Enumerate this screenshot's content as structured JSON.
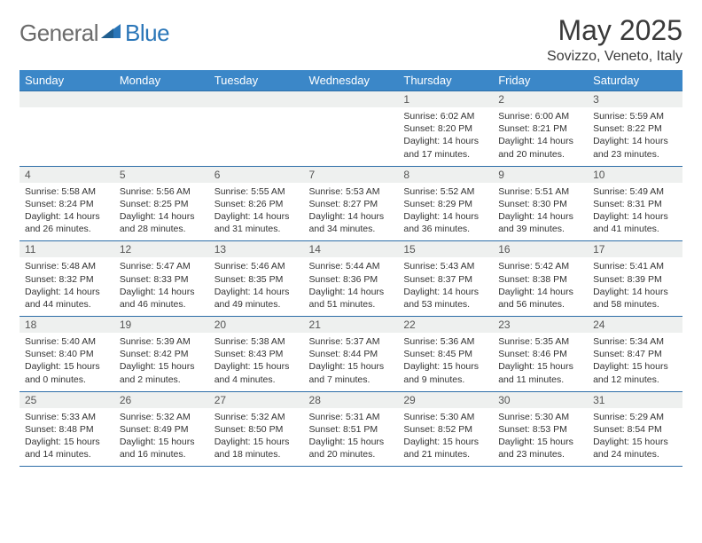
{
  "brand": {
    "general": "General",
    "blue": "Blue"
  },
  "title": "May 2025",
  "location": "Sovizzo, Veneto, Italy",
  "colors": {
    "header_bg": "#3b87c8",
    "header_text": "#ffffff",
    "grid_line": "#2d6ea8",
    "daynum_bg": "#eef0ef",
    "text": "#333333",
    "logo_gray": "#6b6b6b",
    "logo_blue": "#2a76b8"
  },
  "weekdays": [
    "Sunday",
    "Monday",
    "Tuesday",
    "Wednesday",
    "Thursday",
    "Friday",
    "Saturday"
  ],
  "weeks": [
    [
      {
        "n": "",
        "sr": "",
        "ss": "",
        "dl": ""
      },
      {
        "n": "",
        "sr": "",
        "ss": "",
        "dl": ""
      },
      {
        "n": "",
        "sr": "",
        "ss": "",
        "dl": ""
      },
      {
        "n": "",
        "sr": "",
        "ss": "",
        "dl": ""
      },
      {
        "n": "1",
        "sr": "Sunrise: 6:02 AM",
        "ss": "Sunset: 8:20 PM",
        "dl": "Daylight: 14 hours and 17 minutes."
      },
      {
        "n": "2",
        "sr": "Sunrise: 6:00 AM",
        "ss": "Sunset: 8:21 PM",
        "dl": "Daylight: 14 hours and 20 minutes."
      },
      {
        "n": "3",
        "sr": "Sunrise: 5:59 AM",
        "ss": "Sunset: 8:22 PM",
        "dl": "Daylight: 14 hours and 23 minutes."
      }
    ],
    [
      {
        "n": "4",
        "sr": "Sunrise: 5:58 AM",
        "ss": "Sunset: 8:24 PM",
        "dl": "Daylight: 14 hours and 26 minutes."
      },
      {
        "n": "5",
        "sr": "Sunrise: 5:56 AM",
        "ss": "Sunset: 8:25 PM",
        "dl": "Daylight: 14 hours and 28 minutes."
      },
      {
        "n": "6",
        "sr": "Sunrise: 5:55 AM",
        "ss": "Sunset: 8:26 PM",
        "dl": "Daylight: 14 hours and 31 minutes."
      },
      {
        "n": "7",
        "sr": "Sunrise: 5:53 AM",
        "ss": "Sunset: 8:27 PM",
        "dl": "Daylight: 14 hours and 34 minutes."
      },
      {
        "n": "8",
        "sr": "Sunrise: 5:52 AM",
        "ss": "Sunset: 8:29 PM",
        "dl": "Daylight: 14 hours and 36 minutes."
      },
      {
        "n": "9",
        "sr": "Sunrise: 5:51 AM",
        "ss": "Sunset: 8:30 PM",
        "dl": "Daylight: 14 hours and 39 minutes."
      },
      {
        "n": "10",
        "sr": "Sunrise: 5:49 AM",
        "ss": "Sunset: 8:31 PM",
        "dl": "Daylight: 14 hours and 41 minutes."
      }
    ],
    [
      {
        "n": "11",
        "sr": "Sunrise: 5:48 AM",
        "ss": "Sunset: 8:32 PM",
        "dl": "Daylight: 14 hours and 44 minutes."
      },
      {
        "n": "12",
        "sr": "Sunrise: 5:47 AM",
        "ss": "Sunset: 8:33 PM",
        "dl": "Daylight: 14 hours and 46 minutes."
      },
      {
        "n": "13",
        "sr": "Sunrise: 5:46 AM",
        "ss": "Sunset: 8:35 PM",
        "dl": "Daylight: 14 hours and 49 minutes."
      },
      {
        "n": "14",
        "sr": "Sunrise: 5:44 AM",
        "ss": "Sunset: 8:36 PM",
        "dl": "Daylight: 14 hours and 51 minutes."
      },
      {
        "n": "15",
        "sr": "Sunrise: 5:43 AM",
        "ss": "Sunset: 8:37 PM",
        "dl": "Daylight: 14 hours and 53 minutes."
      },
      {
        "n": "16",
        "sr": "Sunrise: 5:42 AM",
        "ss": "Sunset: 8:38 PM",
        "dl": "Daylight: 14 hours and 56 minutes."
      },
      {
        "n": "17",
        "sr": "Sunrise: 5:41 AM",
        "ss": "Sunset: 8:39 PM",
        "dl": "Daylight: 14 hours and 58 minutes."
      }
    ],
    [
      {
        "n": "18",
        "sr": "Sunrise: 5:40 AM",
        "ss": "Sunset: 8:40 PM",
        "dl": "Daylight: 15 hours and 0 minutes."
      },
      {
        "n": "19",
        "sr": "Sunrise: 5:39 AM",
        "ss": "Sunset: 8:42 PM",
        "dl": "Daylight: 15 hours and 2 minutes."
      },
      {
        "n": "20",
        "sr": "Sunrise: 5:38 AM",
        "ss": "Sunset: 8:43 PM",
        "dl": "Daylight: 15 hours and 4 minutes."
      },
      {
        "n": "21",
        "sr": "Sunrise: 5:37 AM",
        "ss": "Sunset: 8:44 PM",
        "dl": "Daylight: 15 hours and 7 minutes."
      },
      {
        "n": "22",
        "sr": "Sunrise: 5:36 AM",
        "ss": "Sunset: 8:45 PM",
        "dl": "Daylight: 15 hours and 9 minutes."
      },
      {
        "n": "23",
        "sr": "Sunrise: 5:35 AM",
        "ss": "Sunset: 8:46 PM",
        "dl": "Daylight: 15 hours and 11 minutes."
      },
      {
        "n": "24",
        "sr": "Sunrise: 5:34 AM",
        "ss": "Sunset: 8:47 PM",
        "dl": "Daylight: 15 hours and 12 minutes."
      }
    ],
    [
      {
        "n": "25",
        "sr": "Sunrise: 5:33 AM",
        "ss": "Sunset: 8:48 PM",
        "dl": "Daylight: 15 hours and 14 minutes."
      },
      {
        "n": "26",
        "sr": "Sunrise: 5:32 AM",
        "ss": "Sunset: 8:49 PM",
        "dl": "Daylight: 15 hours and 16 minutes."
      },
      {
        "n": "27",
        "sr": "Sunrise: 5:32 AM",
        "ss": "Sunset: 8:50 PM",
        "dl": "Daylight: 15 hours and 18 minutes."
      },
      {
        "n": "28",
        "sr": "Sunrise: 5:31 AM",
        "ss": "Sunset: 8:51 PM",
        "dl": "Daylight: 15 hours and 20 minutes."
      },
      {
        "n": "29",
        "sr": "Sunrise: 5:30 AM",
        "ss": "Sunset: 8:52 PM",
        "dl": "Daylight: 15 hours and 21 minutes."
      },
      {
        "n": "30",
        "sr": "Sunrise: 5:30 AM",
        "ss": "Sunset: 8:53 PM",
        "dl": "Daylight: 15 hours and 23 minutes."
      },
      {
        "n": "31",
        "sr": "Sunrise: 5:29 AM",
        "ss": "Sunset: 8:54 PM",
        "dl": "Daylight: 15 hours and 24 minutes."
      }
    ]
  ]
}
